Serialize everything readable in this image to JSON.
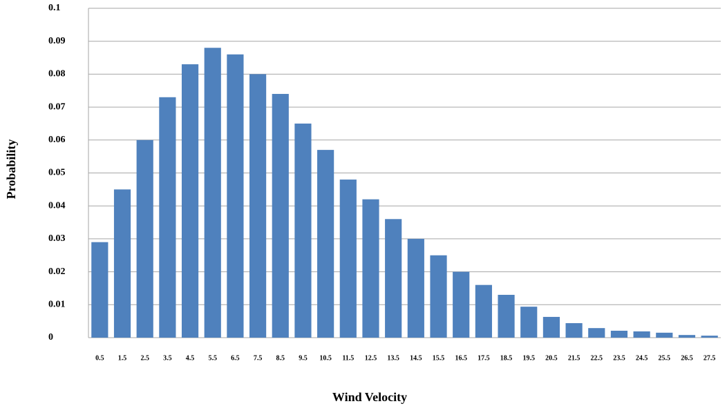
{
  "chart_data": {
    "type": "bar",
    "x_label": "Wind Velocity",
    "y_label": "Probability",
    "categories": [
      "0.5",
      "1.5",
      "2.5",
      "3.5",
      "4.5",
      "5.5",
      "6.5",
      "7.5",
      "8.5",
      "9.5",
      "10.5",
      "11.5",
      "12.5",
      "13.5",
      "14.5",
      "15.5",
      "16.5",
      "17.5",
      "18.5",
      "19.5",
      "20.5",
      "21.5",
      "22.5",
      "23.5",
      "24.5",
      "25.5",
      "26.5",
      "27.5"
    ],
    "values": [
      0.029,
      0.045,
      0.06,
      0.073,
      0.083,
      0.088,
      0.086,
      0.08,
      0.074,
      0.065,
      0.057,
      0.048,
      0.042,
      0.036,
      0.03,
      0.025,
      0.02,
      0.016,
      0.013,
      0.0094,
      0.0063,
      0.0044,
      0.0029,
      0.0021,
      0.0019,
      0.0015,
      0.0008,
      0.0006
    ],
    "color": "#4f81bd",
    "ylim": [
      0,
      0.1
    ],
    "yticks": [
      0,
      0.01,
      0.02,
      0.03,
      0.04,
      0.05,
      0.06,
      0.07,
      0.08,
      0.09,
      0.1
    ],
    "grid": true
  }
}
